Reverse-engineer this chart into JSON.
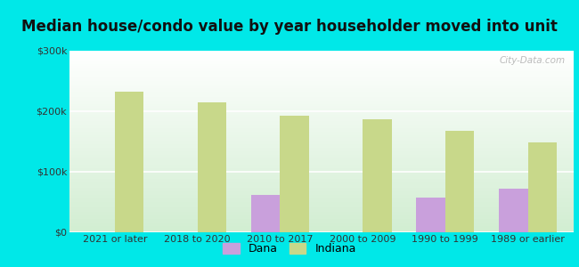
{
  "title": "Median house/condo value by year householder moved into unit",
  "categories": [
    "2021 or later",
    "2018 to 2020",
    "2010 to 2017",
    "2000 to 2009",
    "1990 to 1999",
    "1989 or earlier"
  ],
  "dana_values": [
    0,
    0,
    62000,
    0,
    58000,
    72000
  ],
  "indiana_values": [
    232000,
    215000,
    192000,
    187000,
    168000,
    148000
  ],
  "dana_color": "#c9a0dc",
  "indiana_color": "#c8d88a",
  "background_outer": "#00e8e8",
  "ylim": [
    0,
    300000
  ],
  "yticks": [
    0,
    100000,
    200000,
    300000
  ],
  "ytick_labels": [
    "$0",
    "$100k",
    "$200k",
    "$300k"
  ],
  "watermark": "City-Data.com",
  "legend_dana": "Dana",
  "legend_indiana": "Indiana",
  "bar_width": 0.35,
  "title_fontsize": 12,
  "tick_fontsize": 8
}
